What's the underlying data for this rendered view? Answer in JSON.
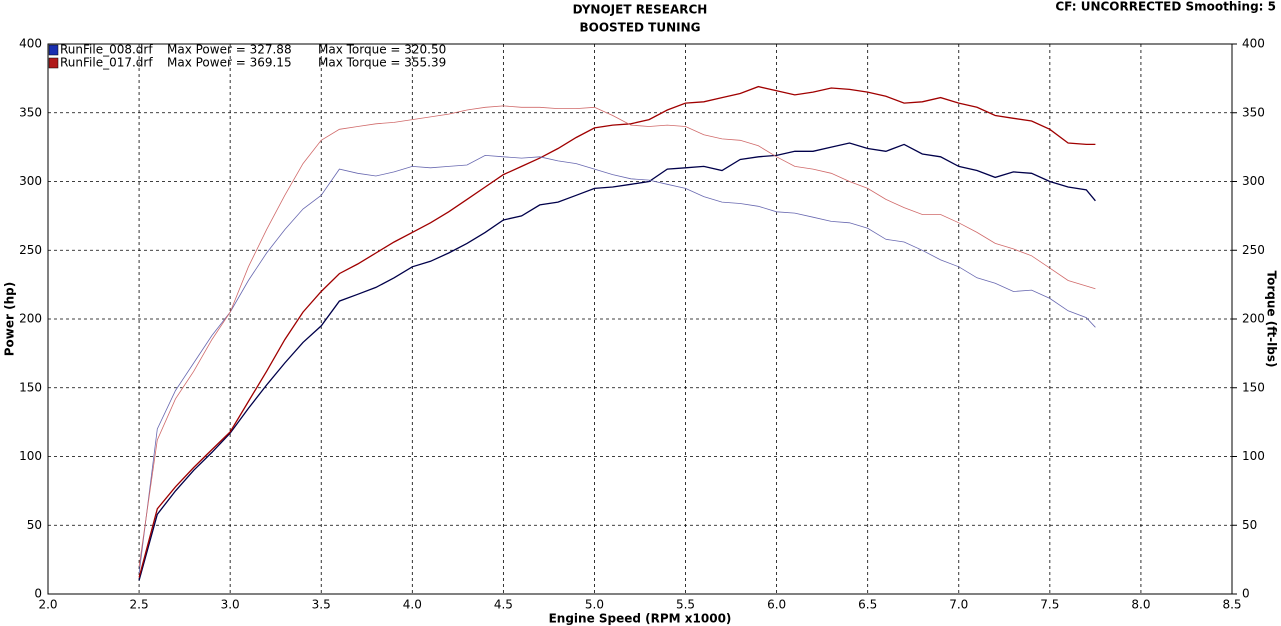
{
  "chart_data": {
    "type": "line",
    "title": "DYNOJET RESEARCH",
    "subtitle": "BOOSTED TUNING",
    "annotation": "CF: UNCORRECTED  Smoothing: 5",
    "x_label": "Engine Speed (RPM x1000)",
    "y_label": "Power (hp)",
    "y2_label": "Torque (ft-lbs)",
    "legend": [
      {
        "file": "RunFile_008.drf",
        "max_power": "Max Power = 327.88",
        "max_torque": "Max Torque = 320.50",
        "color": "#1a2fb0"
      },
      {
        "file": "RunFile_017.drf",
        "max_power": "Max Power = 369.15",
        "max_torque": "Max Torque = 355.39",
        "color": "#b01a1a"
      }
    ],
    "x": [
      2.5,
      2.6,
      2.7,
      2.8,
      2.9,
      3.0,
      3.1,
      3.2,
      3.3,
      3.4,
      3.5,
      3.6,
      3.7,
      3.8,
      3.9,
      4.0,
      4.1,
      4.2,
      4.3,
      4.4,
      4.5,
      4.6,
      4.7,
      4.8,
      4.9,
      5.0,
      5.1,
      5.2,
      5.3,
      5.4,
      5.5,
      5.6,
      5.7,
      5.8,
      5.9,
      6.0,
      6.1,
      6.2,
      6.3,
      6.4,
      6.5,
      6.6,
      6.7,
      6.8,
      6.9,
      7.0,
      7.1,
      7.2,
      7.3,
      7.4,
      7.5,
      7.6,
      7.7,
      7.75
    ],
    "series": [
      {
        "color": "#00004a",
        "width": 1.3,
        "values": [
          10,
          58,
          75,
          90,
          103,
          117,
          135,
          152,
          168,
          183,
          195,
          213,
          218,
          223,
          230,
          238,
          242,
          248,
          255,
          263,
          272,
          275,
          283,
          285,
          290,
          295,
          296,
          298,
          300,
          309,
          310,
          311,
          308,
          316,
          318,
          319,
          322,
          322,
          325,
          328,
          324,
          322,
          327,
          320,
          318,
          311,
          308,
          303,
          307,
          306,
          300,
          296,
          294,
          286
        ]
      },
      {
        "color": "#a00000",
        "width": 1.3,
        "values": [
          12,
          62,
          78,
          92,
          105,
          118,
          140,
          162,
          185,
          205,
          220,
          233,
          240,
          248,
          256,
          263,
          270,
          278,
          287,
          296,
          305,
          311,
          317,
          324,
          332,
          339,
          341,
          342,
          345,
          352,
          357,
          358,
          361,
          364,
          369,
          366,
          363,
          365,
          368,
          367,
          365,
          362,
          357,
          358,
          361,
          357,
          354,
          348,
          346,
          344,
          338,
          328,
          327,
          327
        ]
      },
      {
        "color": "#6868b0",
        "width": 0.8,
        "axis": "y2",
        "values": [
          15,
          120,
          148,
          168,
          188,
          205,
          228,
          248,
          265,
          280,
          290,
          309,
          306,
          304,
          307,
          311,
          310,
          311,
          312,
          319,
          318,
          317,
          318,
          315,
          313,
          309,
          305,
          302,
          301,
          298,
          295,
          289,
          285,
          284,
          282,
          278,
          277,
          274,
          271,
          270,
          266,
          258,
          256,
          250,
          243,
          238,
          230,
          226,
          220,
          221,
          215,
          206,
          201,
          194
        ]
      },
      {
        "color": "#d06a6a",
        "width": 0.8,
        "axis": "y2",
        "values": [
          20,
          112,
          142,
          162,
          185,
          205,
          238,
          265,
          290,
          313,
          330,
          338,
          340,
          342,
          343,
          345,
          347,
          349,
          352,
          354,
          355,
          354,
          354,
          353,
          353,
          354,
          348,
          341,
          340,
          341,
          340,
          334,
          331,
          330,
          326,
          318,
          311,
          309,
          306,
          300,
          295,
          287,
          281,
          276,
          276,
          270,
          263,
          255,
          251,
          246,
          237,
          228,
          224,
          222
        ]
      }
    ],
    "xlim": [
      2,
      8.5
    ],
    "xticks": [
      {
        "value": 2,
        "label": "2.0"
      },
      2.5,
      {
        "value": 3,
        "label": "3.0"
      },
      3.5,
      {
        "value": 4,
        "label": "4.0"
      },
      4.5,
      {
        "value": 5,
        "label": "5.0"
      },
      5.5,
      {
        "value": 6,
        "label": "6.0"
      },
      6.5,
      {
        "value": 7,
        "label": "7.0"
      },
      7.5,
      {
        "value": 8,
        "label": "8.0"
      },
      8.5
    ],
    "ylim": [
      0,
      400
    ],
    "yticks": [
      0,
      50,
      100,
      150,
      200,
      250,
      300,
      350,
      400
    ],
    "y2lim": [
      0,
      400
    ],
    "y2ticks": [
      0,
      50,
      100,
      150,
      200,
      250,
      300,
      350,
      400
    ],
    "grid": true
  }
}
